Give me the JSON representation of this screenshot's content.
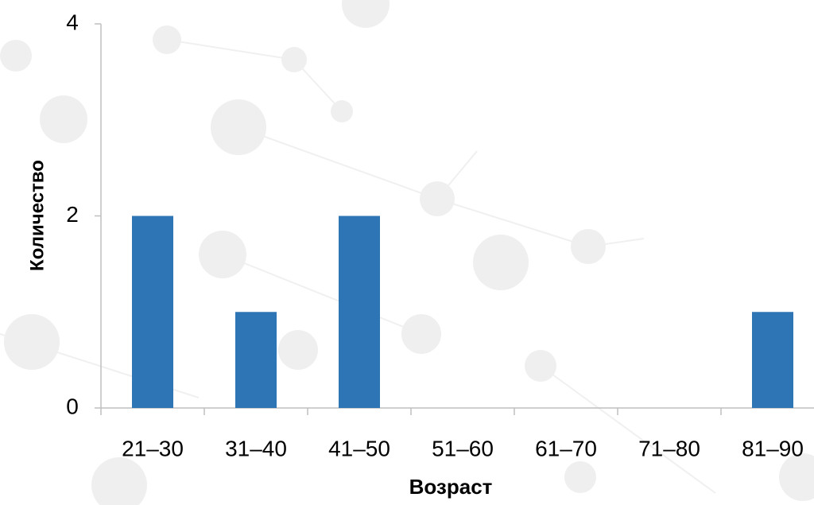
{
  "chart_data": {
    "type": "bar",
    "categories": [
      "21–30",
      "31–40",
      "41–50",
      "51–60",
      "61–70",
      "71–80",
      "81–90"
    ],
    "values": [
      2,
      1,
      2,
      0,
      0,
      0,
      1
    ],
    "color": "#2e75b6",
    "ylim": [
      0,
      4
    ],
    "yticks": [
      0,
      2,
      4
    ],
    "x_label": "Возраст",
    "y_label": "Количество"
  }
}
